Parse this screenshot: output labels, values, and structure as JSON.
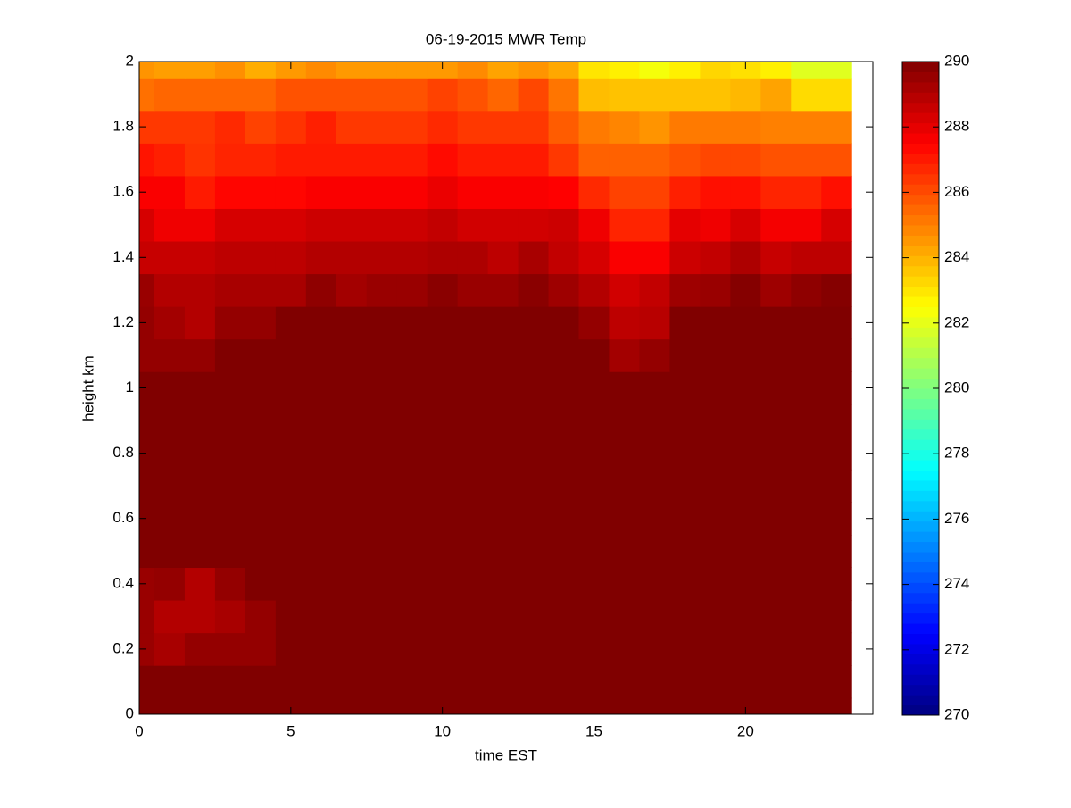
{
  "chart_data": {
    "type": "heatmap",
    "title": "06-19-2015 MWR Temp",
    "x_label": "time EST",
    "y_label": "height km",
    "colormap": "jet",
    "clim": [
      270,
      290
    ],
    "cticks": [
      270,
      272,
      274,
      276,
      278,
      280,
      282,
      284,
      286,
      288,
      290
    ],
    "xlim": [
      0,
      24.2
    ],
    "xticks": [
      0,
      5,
      10,
      15,
      20
    ],
    "ylim": [
      0,
      2
    ],
    "yticks": [
      0,
      0.2,
      0.4,
      0.6,
      0.8,
      1,
      1.2,
      1.4,
      1.6,
      1.8,
      2
    ],
    "x": [
      0,
      1,
      2,
      3,
      4,
      5,
      6,
      7,
      8,
      9,
      10,
      11,
      12,
      13,
      14,
      15,
      16,
      17,
      18,
      19,
      20,
      21,
      22,
      23
    ],
    "y": [
      0,
      0.1,
      0.2,
      0.3,
      0.4,
      0.5,
      0.6,
      0.7,
      0.8,
      0.9,
      1,
      1.1,
      1.2,
      1.3,
      1.4,
      1.5,
      1.6,
      1.7,
      1.8,
      1.9,
      2
    ],
    "z": [
      [
        290,
        290,
        290,
        290,
        290,
        290,
        290,
        290,
        290,
        290,
        290,
        290,
        290,
        290,
        290,
        290,
        290,
        290,
        290,
        290,
        290,
        290,
        290,
        290
      ],
      [
        290,
        290,
        290,
        290,
        290,
        290,
        290,
        290,
        290,
        290,
        290,
        290,
        290,
        290,
        290,
        290,
        290,
        290,
        290,
        290,
        290,
        290,
        290,
        290
      ],
      [
        289.5,
        289.2,
        289.6,
        289.6,
        289.6,
        290,
        290,
        290,
        290,
        290,
        290,
        290,
        290,
        290,
        290,
        290,
        290,
        290,
        290,
        290,
        290,
        290,
        290,
        290
      ],
      [
        289.5,
        289,
        289,
        289.2,
        289.6,
        290,
        290,
        290,
        290,
        290,
        290,
        290,
        290,
        290,
        290,
        290,
        290,
        290,
        290,
        290,
        290,
        290,
        290,
        290
      ],
      [
        289.5,
        289.6,
        289,
        289.6,
        290,
        290,
        290,
        290,
        290,
        290,
        290,
        290,
        290,
        290,
        290,
        290,
        290,
        290,
        290,
        290,
        290,
        290,
        290,
        290
      ],
      [
        290,
        290,
        290,
        290,
        290,
        290,
        290,
        290,
        290,
        290,
        290,
        290,
        290,
        290,
        290,
        290,
        290,
        290,
        290,
        290,
        290,
        290,
        290,
        290
      ],
      [
        290,
        290,
        290,
        290,
        290,
        290,
        290,
        290,
        290,
        290,
        290,
        290,
        290,
        290,
        290,
        290,
        290,
        290,
        290,
        290,
        290,
        290,
        290,
        290
      ],
      [
        290,
        290,
        290,
        290,
        290,
        290,
        290,
        290,
        290,
        290,
        290,
        290,
        290,
        290,
        290,
        290,
        290,
        290,
        290,
        290,
        290,
        290,
        290,
        290
      ],
      [
        290,
        290,
        290,
        290,
        290,
        290,
        290,
        290,
        290,
        290,
        290,
        290,
        290,
        290,
        290,
        290,
        290,
        290,
        290,
        290,
        290,
        290,
        290,
        290
      ],
      [
        290,
        290,
        290,
        290,
        290,
        290,
        290,
        290,
        290,
        290,
        290,
        290,
        290,
        290,
        290,
        290,
        290,
        290,
        290,
        290,
        290,
        290,
        290,
        290
      ],
      [
        290,
        290,
        290,
        290,
        290,
        290,
        290,
        290,
        290,
        290,
        290,
        290,
        290,
        290,
        290,
        290,
        290,
        290,
        290,
        290,
        290,
        290,
        290,
        290
      ],
      [
        289.6,
        289.6,
        289.6,
        290,
        290,
        290,
        290,
        290,
        290,
        290,
        290,
        290,
        290,
        290,
        290,
        290,
        289.3,
        289.6,
        290,
        290,
        290,
        290,
        290,
        290
      ],
      [
        289.6,
        289.3,
        289,
        289.6,
        289.6,
        290,
        290,
        290,
        290,
        290,
        290,
        290,
        290,
        290,
        290,
        289.6,
        288.8,
        288.9,
        290,
        290,
        290,
        290,
        290,
        290
      ],
      [
        289.5,
        289,
        289,
        289.2,
        289.2,
        289.2,
        289.7,
        289.3,
        289.5,
        289.5,
        289.8,
        289.5,
        289.5,
        289.8,
        289.4,
        289,
        288.4,
        288.7,
        289.4,
        289.5,
        289.9,
        289.4,
        289.7,
        289.9
      ],
      [
        288.6,
        288.6,
        288.6,
        288.8,
        288.8,
        288.8,
        289,
        289,
        289,
        289,
        289.1,
        289.1,
        288.8,
        289.2,
        288.7,
        288.3,
        287.6,
        287.6,
        288.5,
        288.7,
        289.1,
        288.6,
        288.8,
        288.8
      ],
      [
        288.3,
        287.8,
        287.8,
        288.3,
        288.3,
        288.3,
        288.5,
        288.5,
        288.5,
        288.5,
        288.7,
        288.4,
        288.4,
        288.4,
        288.5,
        287.8,
        286.8,
        286.8,
        288,
        287.8,
        288.3,
        287.7,
        287.7,
        288.3
      ],
      [
        287.6,
        287.6,
        287,
        287.4,
        287.4,
        287.4,
        287.6,
        287.6,
        287.6,
        287.6,
        287.9,
        287.6,
        287.6,
        287.6,
        287.5,
        286.7,
        286.2,
        286.2,
        286.9,
        287.2,
        287.2,
        286.8,
        286.8,
        287.2
      ],
      [
        287.1,
        286.9,
        286.5,
        286.8,
        286.8,
        287,
        287,
        287,
        287,
        287,
        287.3,
        287,
        287,
        287,
        286.4,
        285.6,
        285.6,
        285.6,
        285.9,
        286.1,
        286.1,
        285.9,
        285.9,
        285.9
      ],
      [
        286.4,
        286.4,
        286.4,
        286.7,
        286.2,
        286.5,
        286.9,
        286.4,
        286.4,
        286.4,
        286.7,
        286.4,
        286.4,
        286.4,
        285.7,
        285.1,
        284.9,
        284.6,
        285.1,
        285.1,
        285.1,
        285,
        285,
        285
      ],
      [
        285.3,
        285.5,
        285.5,
        285.5,
        285.5,
        285.9,
        285.9,
        285.9,
        285.9,
        285.9,
        286.2,
        285.9,
        285.5,
        286.1,
        285.2,
        283.8,
        283.7,
        283.7,
        283.7,
        283.7,
        283.9,
        284.3,
        283.2,
        283.2
      ],
      [
        284.6,
        284.4,
        284.4,
        284.7,
        284.1,
        284.5,
        284.8,
        284.5,
        284.5,
        284.5,
        284.5,
        284.8,
        284.3,
        284.6,
        284.2,
        283,
        282.8,
        282.3,
        282.8,
        283.3,
        283.1,
        282.8,
        281.9,
        281.9
      ]
    ]
  }
}
